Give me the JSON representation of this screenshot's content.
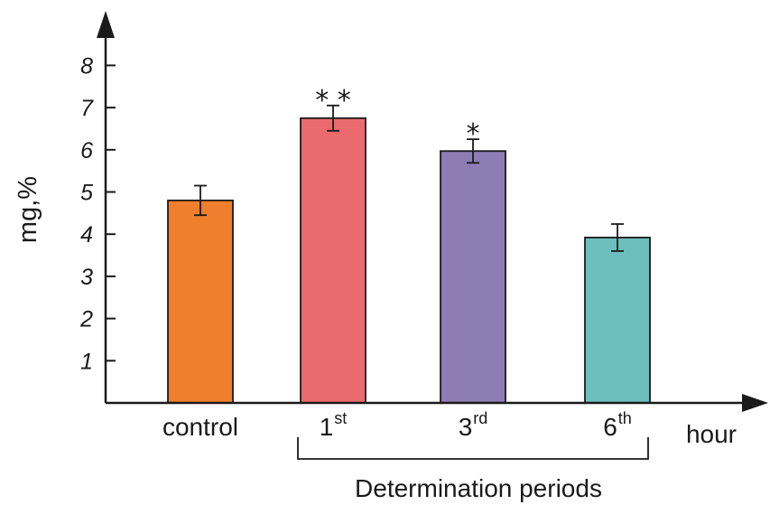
{
  "chart_data": {
    "type": "bar",
    "categories": [
      {
        "label": "control",
        "sup": ""
      },
      {
        "label": "1",
        "sup": "st"
      },
      {
        "label": "3",
        "sup": "rd"
      },
      {
        "label": "6",
        "sup": "th"
      }
    ],
    "values": [
      4.8,
      6.75,
      5.97,
      3.92
    ],
    "errors": [
      0.35,
      0.3,
      0.28,
      0.32
    ],
    "significance": [
      "",
      "* *",
      "*",
      ""
    ],
    "colors": [
      "#ef7f2d",
      "#eb6a6e",
      "#8e7cb5",
      "#6cbfbc"
    ],
    "ylabel": "mg,%",
    "x_unit": "hour",
    "group_label": "Determination periods",
    "ylim": [
      0,
      8
    ],
    "yticks": [
      1,
      2,
      3,
      4,
      5,
      6,
      7,
      8
    ],
    "grid": false
  }
}
